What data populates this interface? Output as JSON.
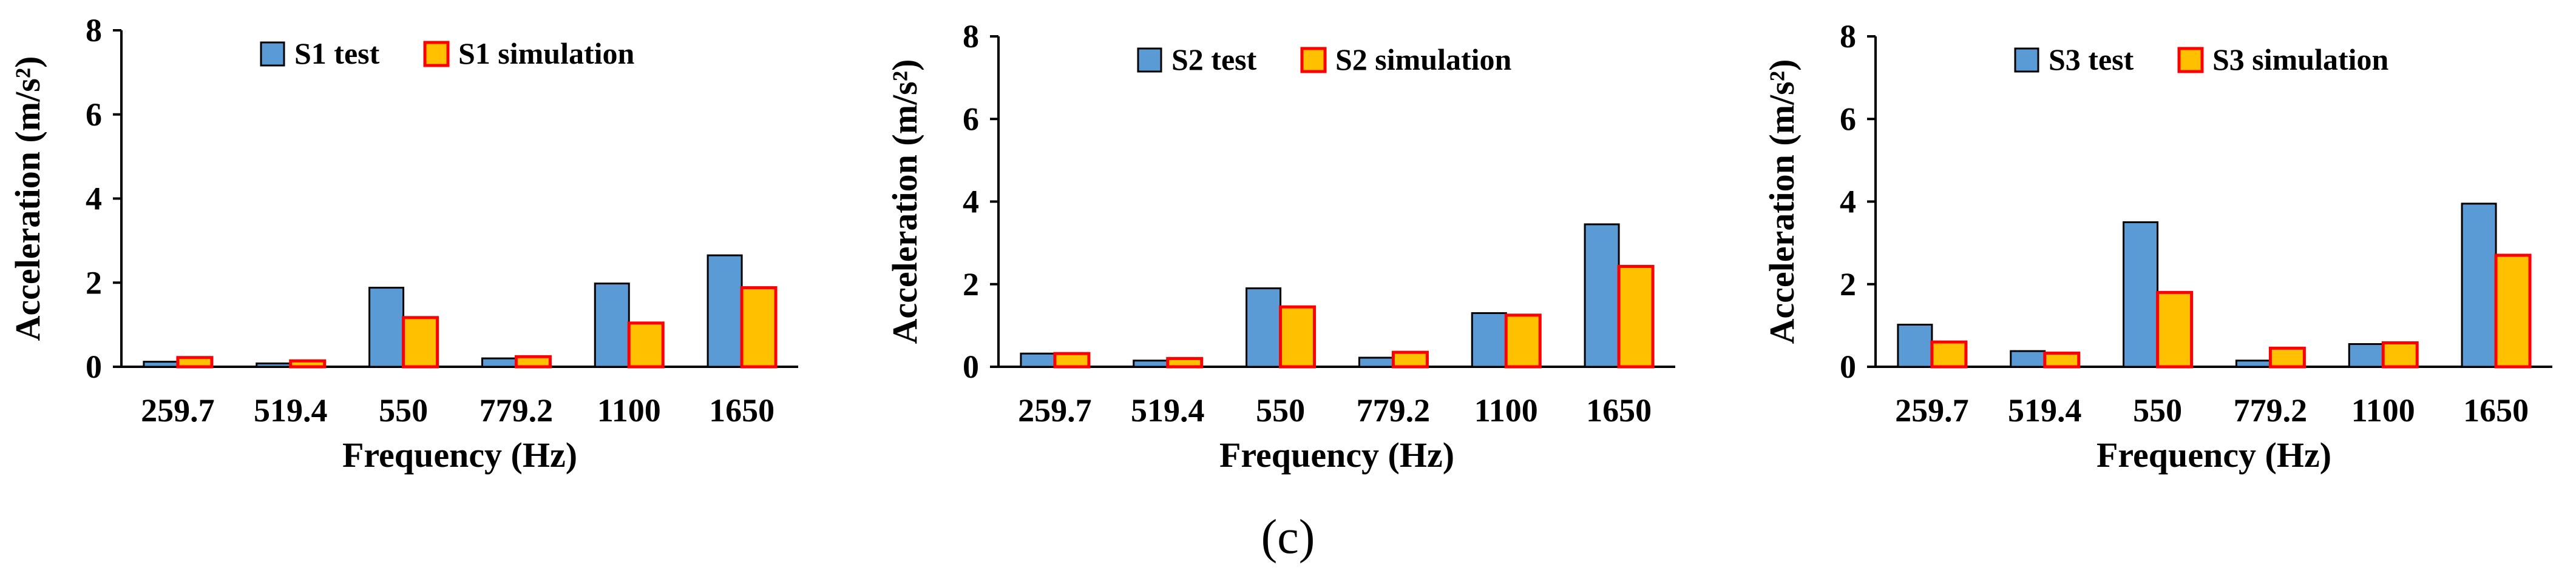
{
  "figure_caption": "(c)",
  "colors": {
    "test_fill": "#5B9BD5",
    "sim_fill": "#FFC000",
    "sim_border": "#FF0000",
    "axis": "#000000"
  },
  "chart_data": [
    {
      "type": "bar",
      "title": "",
      "categories": [
        "259.7",
        "519.4",
        "550",
        "779.2",
        "1100",
        "1650"
      ],
      "series": [
        {
          "name": "S1 test",
          "values": [
            0.12,
            0.08,
            1.88,
            0.2,
            1.98,
            2.65
          ]
        },
        {
          "name": "S1 simulation",
          "values": [
            0.22,
            0.14,
            1.17,
            0.24,
            1.04,
            1.88
          ]
        }
      ],
      "xlabel": "Frequency (Hz)",
      "ylabel": "Acceleration (m/s²)",
      "ylim": [
        0,
        8
      ],
      "yticks": [
        "0",
        "2",
        "4",
        "6",
        "8"
      ],
      "legend": "top-left, inside plot"
    },
    {
      "type": "bar",
      "title": "",
      "categories": [
        "259.7",
        "519.4",
        "550",
        "779.2",
        "1100",
        "1650"
      ],
      "series": [
        {
          "name": "S2 test",
          "values": [
            0.32,
            0.15,
            1.9,
            0.22,
            1.3,
            3.45
          ]
        },
        {
          "name": "S2 simulation",
          "values": [
            0.32,
            0.2,
            1.45,
            0.35,
            1.25,
            2.43
          ]
        }
      ],
      "xlabel": "Frequency (Hz)",
      "ylabel": "Acceleration (m/s²)",
      "ylim": [
        0,
        8
      ],
      "yticks": [
        "0",
        "2",
        "4",
        "6",
        "8"
      ],
      "legend": "top-left, inside plot"
    },
    {
      "type": "bar",
      "title": "",
      "categories": [
        "259.7",
        "519.4",
        "550",
        "779.2",
        "1100",
        "1650"
      ],
      "series": [
        {
          "name": "S3 test",
          "values": [
            1.02,
            0.38,
            3.5,
            0.15,
            0.55,
            3.95
          ]
        },
        {
          "name": "S3 simulation",
          "values": [
            0.6,
            0.33,
            1.8,
            0.45,
            0.58,
            2.7
          ]
        }
      ],
      "xlabel": "Frequency (Hz)",
      "ylabel": "Acceleration (m/s²)",
      "ylim": [
        0,
        8
      ],
      "yticks": [
        "0",
        "2",
        "4",
        "6",
        "8"
      ],
      "legend": "top-left, inside plot"
    }
  ]
}
